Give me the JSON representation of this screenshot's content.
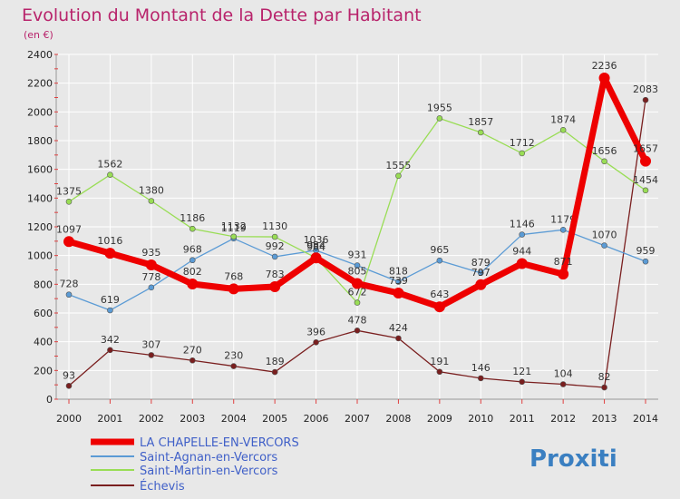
{
  "chart_data": {
    "type": "line",
    "title": "Evolution du Montant de la Dette par Habitant",
    "subtitle": "(en €)",
    "x": [
      "2000",
      "2001",
      "2002",
      "2003",
      "2004",
      "2005",
      "2006",
      "2007",
      "2008",
      "2009",
      "2010",
      "2011",
      "2012",
      "2013",
      "2014"
    ],
    "ylim": [
      0,
      2400
    ],
    "yticks": [
      "0",
      "200",
      "400",
      "600",
      "800",
      "1000",
      "1200",
      "1400",
      "1600",
      "1800",
      "2000",
      "2200",
      "2400"
    ],
    "grid": true,
    "series": [
      {
        "name": "LA CHAPELLE-EN-VERCORS",
        "color": "#ee0000",
        "values": [
          1097,
          1016,
          935,
          802,
          768,
          783,
          984,
          805,
          739,
          643,
          797,
          944,
          871,
          2236,
          1657
        ]
      },
      {
        "name": "Saint-Agnan-en-Vercors",
        "color": "#5b9bd5",
        "values": [
          728,
          619,
          778,
          968,
          1119,
          992,
          1036,
          931,
          818,
          965,
          879,
          1146,
          1179,
          1070,
          959
        ]
      },
      {
        "name": "Saint-Martin-en-Vercors",
        "color": "#99dd55",
        "values": [
          1375,
          1562,
          1380,
          1186,
          1132,
          1130,
          984,
          672,
          1555,
          1955,
          1857,
          1712,
          1874,
          1656,
          1454
        ]
      },
      {
        "name": "Échevis",
        "color": "#7a1f1f",
        "values": [
          93,
          342,
          307,
          270,
          230,
          189,
          396,
          478,
          424,
          191,
          146,
          121,
          104,
          82,
          2083
        ]
      }
    ],
    "legend": "bottom-left"
  },
  "labels": {
    "LA CHAPELLE-EN-VERCORS": [
      "1097",
      "1016",
      "935",
      "802",
      "768",
      "783",
      "984",
      "805",
      "739",
      "643",
      "797",
      "944",
      "871",
      "2236",
      "1657"
    ],
    "Saint-Agnan-en-Vercors": [
      "728",
      "619",
      "778",
      "968",
      "1119",
      "992",
      "1036",
      "931",
      "818",
      "965",
      "879",
      "1146",
      "1179",
      "1070",
      "959"
    ],
    "Saint-Martin-en-Vercors": [
      "1375",
      "1562",
      "1380",
      "1186",
      "1132",
      "1130",
      "984",
      "672",
      "1555",
      "1955",
      "1857",
      "1712",
      "1874",
      "1656",
      "1454"
    ],
    "Échevis": [
      "93",
      "342",
      "307",
      "270",
      "230",
      "189",
      "396",
      "478",
      "424",
      "191",
      "146",
      "121",
      "104",
      "82",
      "2083"
    ]
  },
  "logo": {
    "text": "Proxiti"
  }
}
